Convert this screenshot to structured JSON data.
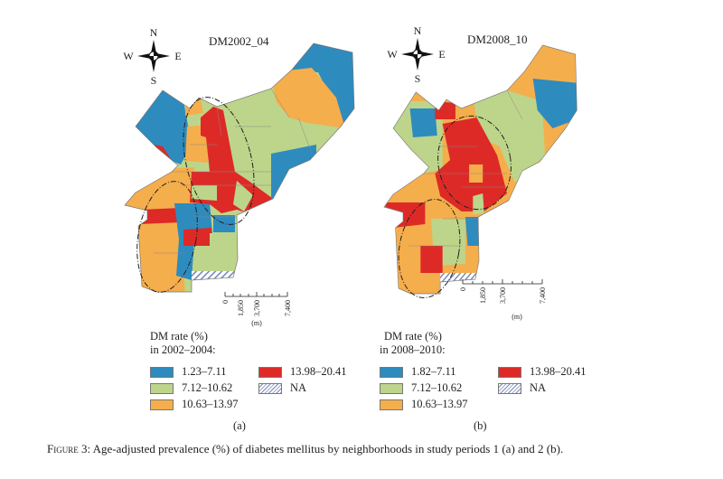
{
  "colors": {
    "class1": "#2e8bbe",
    "class2": "#bdd58a",
    "class3": "#f5ae4c",
    "class4": "#dd2a27",
    "na_hatch": "#7a88b8"
  },
  "compass": {
    "n": "N",
    "s": "S",
    "e": "E",
    "w": "W"
  },
  "scale_bar": {
    "ticks": [
      "0",
      "1,850",
      "3,700",
      "7,400"
    ],
    "unit": "(m)"
  },
  "panels": [
    {
      "map_title": "DM2002_04",
      "legend_title_1": "DM rate (%)",
      "legend_title_2": "in 2002–2004:",
      "classes": [
        "1.23–7.11",
        "7.12–10.62",
        "10.63–13.97",
        "13.98–20.41",
        "NA"
      ],
      "label": "(a)"
    },
    {
      "map_title": "DM2008_10",
      "legend_title_1": "DM rate (%)",
      "legend_title_2": "in 2008–2010:",
      "classes": [
        "1.82–7.11",
        "7.12–10.62",
        "10.63–13.97",
        "13.98–20.41",
        "NA"
      ],
      "label": "(b)"
    }
  ],
  "caption": {
    "prefix": "Figure 3:",
    "text": " Age-adjusted prevalence (%) of diabetes mellitus by neighborhoods in study periods 1 (a) and 2 (b)."
  }
}
